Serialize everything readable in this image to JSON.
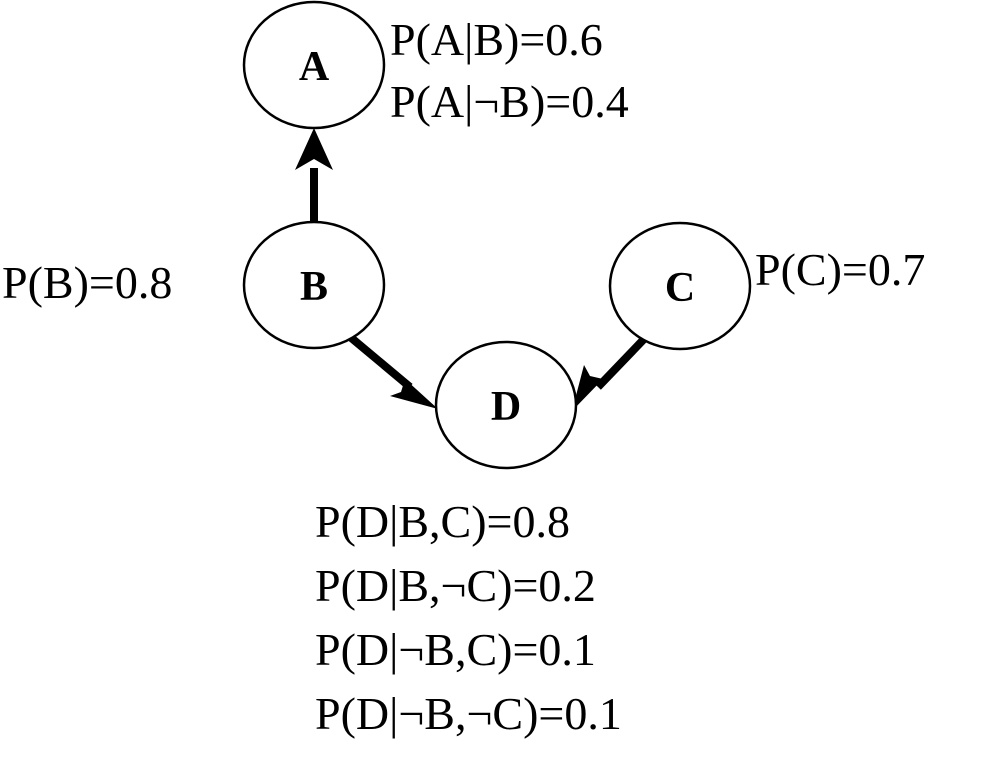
{
  "nodes": {
    "A": {
      "label": "A"
    },
    "B": {
      "label": "B"
    },
    "C": {
      "label": "C"
    },
    "D": {
      "label": "D"
    }
  },
  "edges": [
    {
      "from": "B",
      "to": "A"
    },
    {
      "from": "B",
      "to": "D"
    },
    {
      "from": "C",
      "to": "D"
    }
  ],
  "probabilities": {
    "A": [
      "P(A|B)=0.6",
      "P(A|¬B)=0.4"
    ],
    "B": [
      "P(B)=0.8"
    ],
    "C": [
      "P(C)=0.7"
    ],
    "D": [
      "P(D|B,C)=0.8",
      "P(D|B,¬C)=0.2",
      "P(D|¬B,C)=0.1",
      "P(D|¬B,¬C)=0.1"
    ]
  },
  "colors": {
    "stroke": "#000000",
    "fill": "#ffffff",
    "background": "#ffffff"
  }
}
